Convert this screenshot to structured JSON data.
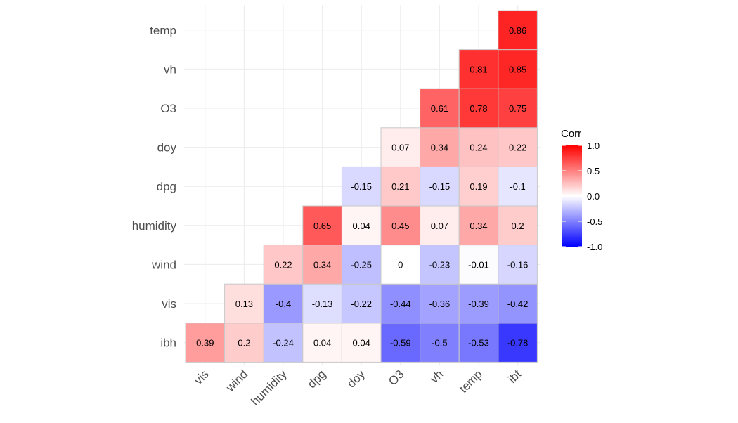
{
  "chart_data": {
    "type": "heatmap",
    "title": "",
    "xlabel": "",
    "ylabel": "",
    "x": [
      "vis",
      "wind",
      "humidity",
      "dpg",
      "doy",
      "O3",
      "vh",
      "temp",
      "ibt"
    ],
    "y": [
      "ibh",
      "vis",
      "wind",
      "humidity",
      "dpg",
      "doy",
      "O3",
      "vh",
      "temp"
    ],
    "cells": [
      {
        "x": "vis",
        "y": "ibh",
        "value": 0.39,
        "label": "0.39"
      },
      {
        "x": "wind",
        "y": "ibh",
        "value": 0.2,
        "label": "0.2"
      },
      {
        "x": "humidity",
        "y": "ibh",
        "value": -0.24,
        "label": "-0.24"
      },
      {
        "x": "dpg",
        "y": "ibh",
        "value": 0.04,
        "label": "0.04"
      },
      {
        "x": "doy",
        "y": "ibh",
        "value": 0.04,
        "label": "0.04"
      },
      {
        "x": "O3",
        "y": "ibh",
        "value": -0.59,
        "label": "-0.59"
      },
      {
        "x": "vh",
        "y": "ibh",
        "value": -0.5,
        "label": "-0.5"
      },
      {
        "x": "temp",
        "y": "ibh",
        "value": -0.53,
        "label": "-0.53"
      },
      {
        "x": "ibt",
        "y": "ibh",
        "value": -0.78,
        "label": "-0.78"
      },
      {
        "x": "wind",
        "y": "vis",
        "value": 0.13,
        "label": "0.13"
      },
      {
        "x": "humidity",
        "y": "vis",
        "value": -0.4,
        "label": "-0.4"
      },
      {
        "x": "dpg",
        "y": "vis",
        "value": -0.13,
        "label": "-0.13"
      },
      {
        "x": "doy",
        "y": "vis",
        "value": -0.22,
        "label": "-0.22"
      },
      {
        "x": "O3",
        "y": "vis",
        "value": -0.44,
        "label": "-0.44"
      },
      {
        "x": "vh",
        "y": "vis",
        "value": -0.36,
        "label": "-0.36"
      },
      {
        "x": "temp",
        "y": "vis",
        "value": -0.39,
        "label": "-0.39"
      },
      {
        "x": "ibt",
        "y": "vis",
        "value": -0.42,
        "label": "-0.42"
      },
      {
        "x": "humidity",
        "y": "wind",
        "value": 0.22,
        "label": "0.22"
      },
      {
        "x": "dpg",
        "y": "wind",
        "value": 0.34,
        "label": "0.34"
      },
      {
        "x": "doy",
        "y": "wind",
        "value": -0.25,
        "label": "-0.25"
      },
      {
        "x": "O3",
        "y": "wind",
        "value": 0,
        "label": "0"
      },
      {
        "x": "vh",
        "y": "wind",
        "value": -0.23,
        "label": "-0.23"
      },
      {
        "x": "temp",
        "y": "wind",
        "value": -0.01,
        "label": "-0.01"
      },
      {
        "x": "ibt",
        "y": "wind",
        "value": -0.16,
        "label": "-0.16"
      },
      {
        "x": "dpg",
        "y": "humidity",
        "value": 0.65,
        "label": "0.65"
      },
      {
        "x": "doy",
        "y": "humidity",
        "value": 0.04,
        "label": "0.04"
      },
      {
        "x": "O3",
        "y": "humidity",
        "value": 0.45,
        "label": "0.45"
      },
      {
        "x": "vh",
        "y": "humidity",
        "value": 0.07,
        "label": "0.07"
      },
      {
        "x": "temp",
        "y": "humidity",
        "value": 0.34,
        "label": "0.34"
      },
      {
        "x": "ibt",
        "y": "humidity",
        "value": 0.2,
        "label": "0.2"
      },
      {
        "x": "doy",
        "y": "dpg",
        "value": -0.15,
        "label": "-0.15"
      },
      {
        "x": "O3",
        "y": "dpg",
        "value": 0.21,
        "label": "0.21"
      },
      {
        "x": "vh",
        "y": "dpg",
        "value": -0.15,
        "label": "-0.15"
      },
      {
        "x": "temp",
        "y": "dpg",
        "value": 0.19,
        "label": "0.19"
      },
      {
        "x": "ibt",
        "y": "dpg",
        "value": -0.1,
        "label": "-0.1"
      },
      {
        "x": "O3",
        "y": "doy",
        "value": 0.07,
        "label": "0.07"
      },
      {
        "x": "vh",
        "y": "doy",
        "value": 0.34,
        "label": "0.34"
      },
      {
        "x": "temp",
        "y": "doy",
        "value": 0.24,
        "label": "0.24"
      },
      {
        "x": "ibt",
        "y": "doy",
        "value": 0.22,
        "label": "0.22"
      },
      {
        "x": "vh",
        "y": "O3",
        "value": 0.61,
        "label": "0.61"
      },
      {
        "x": "temp",
        "y": "O3",
        "value": 0.78,
        "label": "0.78"
      },
      {
        "x": "ibt",
        "y": "O3",
        "value": 0.75,
        "label": "0.75"
      },
      {
        "x": "temp",
        "y": "vh",
        "value": 0.81,
        "label": "0.81"
      },
      {
        "x": "ibt",
        "y": "vh",
        "value": 0.85,
        "label": "0.85"
      },
      {
        "x": "ibt",
        "y": "temp",
        "value": 0.86,
        "label": "0.86"
      }
    ],
    "legend": {
      "title": "Corr",
      "placement": "right",
      "range": [
        -1,
        1
      ],
      "ticks": [
        {
          "value": 1.0,
          "label": "1.0"
        },
        {
          "value": 0.5,
          "label": "0.5"
        },
        {
          "value": 0.0,
          "label": "0.0"
        },
        {
          "value": -0.5,
          "label": "-0.5"
        },
        {
          "value": -1.0,
          "label": "-1.0"
        }
      ]
    },
    "colors": {
      "low": "#0000ff",
      "mid": "#ffffff",
      "high": "#ff0000"
    },
    "grid": true
  }
}
